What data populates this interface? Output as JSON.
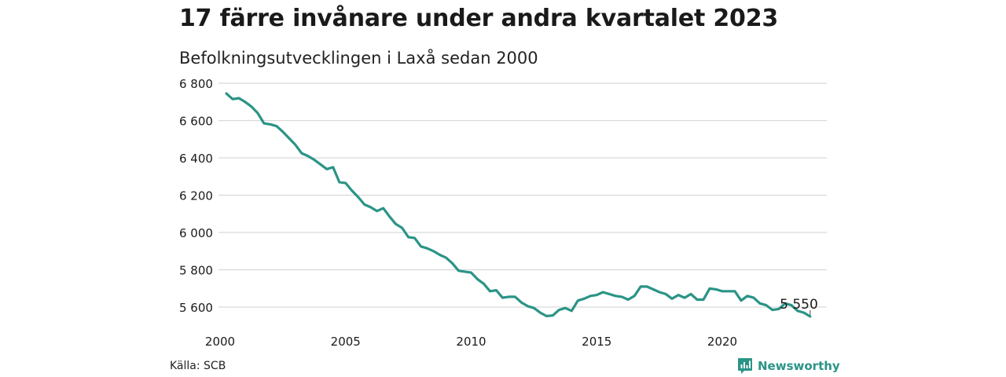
{
  "title": "17 färre invånare under andra kvartalet 2023",
  "subtitle": "Befolkningsutvecklingen i Laxå sedan 2000",
  "source": "Källa: SCB",
  "brand": {
    "name": "Newsworthy",
    "icon": "newsworthy-logo-icon",
    "color": "#2a9486"
  },
  "chart_data": {
    "type": "line",
    "line_color": "#2a9486",
    "grid": true,
    "xlim": [
      2000,
      2024
    ],
    "ylim": [
      5500,
      6800
    ],
    "x_ticks": [
      2000,
      2005,
      2010,
      2015,
      2020
    ],
    "x_tick_labels": [
      "2000",
      "2005",
      "2010",
      "2015",
      "2020"
    ],
    "y_ticks": [
      5600,
      5800,
      6000,
      6200,
      6400,
      6600,
      6800
    ],
    "y_tick_labels": [
      "5 600",
      "5 800",
      "6 000",
      "6 200",
      "6 400",
      "6 600",
      "6 800"
    ],
    "end_label": "5 550",
    "x": [
      2000.25,
      2000.5,
      2000.75,
      2001.0,
      2001.25,
      2001.5,
      2001.75,
      2002.0,
      2002.25,
      2002.5,
      2002.75,
      2003.0,
      2003.25,
      2003.5,
      2003.75,
      2004.0,
      2004.25,
      2004.5,
      2004.75,
      2005.0,
      2005.25,
      2005.5,
      2005.75,
      2006.0,
      2006.25,
      2006.5,
      2006.75,
      2007.0,
      2007.25,
      2007.5,
      2007.75,
      2008.0,
      2008.25,
      2008.5,
      2008.75,
      2009.0,
      2009.25,
      2009.5,
      2009.75,
      2010.0,
      2010.25,
      2010.5,
      2010.75,
      2011.0,
      2011.25,
      2011.5,
      2011.75,
      2012.0,
      2012.25,
      2012.5,
      2012.75,
      2013.0,
      2013.25,
      2013.5,
      2013.75,
      2014.0,
      2014.25,
      2014.5,
      2014.75,
      2015.0,
      2015.25,
      2015.5,
      2015.75,
      2016.0,
      2016.25,
      2016.5,
      2016.75,
      2017.0,
      2017.25,
      2017.5,
      2017.75,
      2018.0,
      2018.25,
      2018.5,
      2018.75,
      2019.0,
      2019.25,
      2019.5,
      2019.75,
      2020.0,
      2020.25,
      2020.5,
      2020.75,
      2021.0,
      2021.25,
      2021.5,
      2021.75,
      2022.0,
      2022.25,
      2022.5,
      2022.75,
      2023.0,
      2023.25,
      2023.5
    ],
    "y": [
      6745,
      6715,
      6720,
      6700,
      6675,
      6640,
      6585,
      6580,
      6570,
      6540,
      6505,
      6470,
      6425,
      6410,
      6390,
      6365,
      6340,
      6350,
      6270,
      6265,
      6225,
      6190,
      6150,
      6135,
      6115,
      6130,
      6085,
      6045,
      6025,
      5975,
      5970,
      5925,
      5915,
      5900,
      5880,
      5865,
      5835,
      5795,
      5790,
      5785,
      5750,
      5725,
      5685,
      5690,
      5650,
      5655,
      5655,
      5625,
      5605,
      5595,
      5570,
      5552,
      5555,
      5585,
      5595,
      5580,
      5635,
      5645,
      5660,
      5665,
      5680,
      5670,
      5660,
      5655,
      5640,
      5660,
      5710,
      5710,
      5695,
      5680,
      5670,
      5645,
      5665,
      5650,
      5670,
      5640,
      5640,
      5700,
      5695,
      5685,
      5685,
      5685,
      5635,
      5660,
      5650,
      5620,
      5610,
      5585,
      5590,
      5620,
      5610,
      5580,
      5570,
      5550
    ]
  }
}
